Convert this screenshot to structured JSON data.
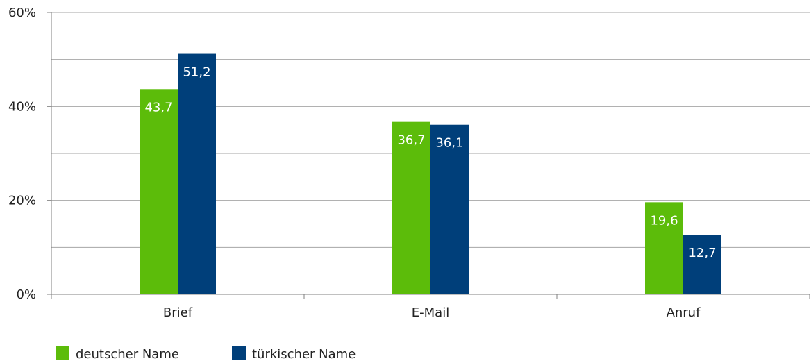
{
  "chart_data": {
    "type": "bar",
    "categories": [
      "Brief",
      "E-Mail",
      "Anruf"
    ],
    "series": [
      {
        "name": "deutscher Name",
        "color": "#5cbc0a",
        "values": [
          43.7,
          36.7,
          19.6
        ],
        "labels": [
          "43,7",
          "36,7",
          "19,6"
        ]
      },
      {
        "name": "türkischer Name",
        "color": "#003f7a",
        "values": [
          51.2,
          36.1,
          12.7
        ],
        "labels": [
          "51,2",
          "36,1",
          "12,7"
        ]
      }
    ],
    "ylim": [
      0,
      60
    ],
    "yticks": [
      0,
      20,
      40,
      60
    ],
    "ytick_labels": [
      "0%",
      "20%",
      "40%",
      "60%"
    ],
    "grid": true,
    "legend": "bottom-left"
  }
}
